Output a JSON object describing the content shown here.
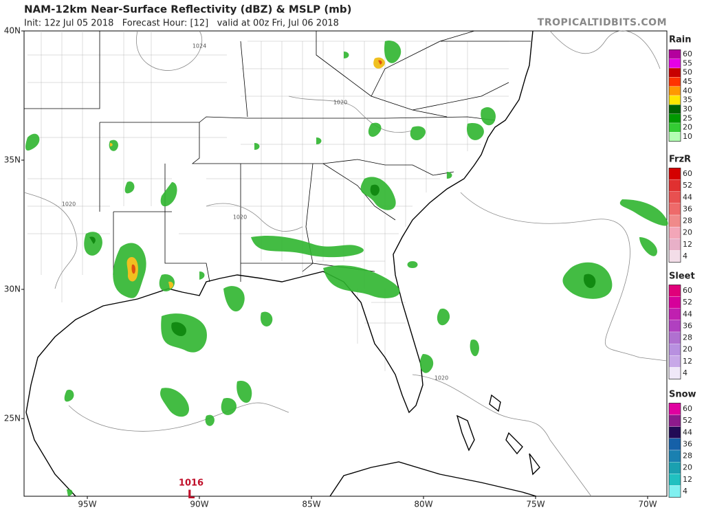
{
  "header": {
    "title": "NAM-12km Near-Surface Reflectivity (dBZ) & MSLP (mb)",
    "subtitle": "Init: 12z Jul 05 2018   Forecast Hour: [12]   valid at 00z Fri, Jul 06 2018",
    "site": "TROPICALTIDBITS.COM"
  },
  "map": {
    "lat_labels": [
      "40N",
      "35N",
      "30N",
      "25N"
    ],
    "lon_labels": [
      "95W",
      "90W",
      "85W",
      "80W",
      "75W",
      "70W"
    ],
    "isobar_labels": [
      "1024",
      "1020",
      "1020",
      "1020",
      "1020"
    ],
    "low": {
      "pressure": "1016",
      "symbol": "L"
    }
  },
  "legend": [
    {
      "title": "Rain",
      "levels": [
        {
          "label": 60,
          "color": "#b4009e"
        },
        {
          "label": 55,
          "color": "#e600e6"
        },
        {
          "label": 50,
          "color": "#c80000"
        },
        {
          "label": 45,
          "color": "#ff3300"
        },
        {
          "label": 40,
          "color": "#ff9900"
        },
        {
          "label": 35,
          "color": "#ffe600"
        },
        {
          "label": 30,
          "color": "#006400"
        },
        {
          "label": 25,
          "color": "#009900"
        },
        {
          "label": 20,
          "color": "#33cc33"
        },
        {
          "label": 10,
          "color": "#b3ffb3"
        }
      ]
    },
    {
      "title": "FrzR",
      "levels": [
        {
          "label": 60,
          "color": "#d40000"
        },
        {
          "label": 52,
          "color": "#e03030"
        },
        {
          "label": 44,
          "color": "#e85050"
        },
        {
          "label": 36,
          "color": "#ee6a6a"
        },
        {
          "label": 28,
          "color": "#f08a8a"
        },
        {
          "label": 20,
          "color": "#f3a6b8"
        },
        {
          "label": 12,
          "color": "#e8b0c8"
        },
        {
          "label": 4,
          "color": "#f3dde8"
        }
      ]
    },
    {
      "title": "Sleet",
      "levels": [
        {
          "label": 60,
          "color": "#e0007a"
        },
        {
          "label": 52,
          "color": "#d6009a"
        },
        {
          "label": 44,
          "color": "#c020b0"
        },
        {
          "label": 36,
          "color": "#b040c0"
        },
        {
          "label": 28,
          "color": "#b070d0"
        },
        {
          "label": 20,
          "color": "#b890e0"
        },
        {
          "label": 12,
          "color": "#c8a8e8"
        },
        {
          "label": 4,
          "color": "#f0e8f8"
        }
      ]
    },
    {
      "title": "Snow",
      "levels": [
        {
          "label": 60,
          "color": "#e000a0"
        },
        {
          "label": 52,
          "color": "#8c1a8c"
        },
        {
          "label": 44,
          "color": "#220a55"
        },
        {
          "label": 36,
          "color": "#1560a8"
        },
        {
          "label": 28,
          "color": "#1a80b0"
        },
        {
          "label": 20,
          "color": "#1aa0b0"
        },
        {
          "label": 12,
          "color": "#20c0c0"
        },
        {
          "label": 4,
          "color": "#80f0f0"
        }
      ]
    }
  ]
}
